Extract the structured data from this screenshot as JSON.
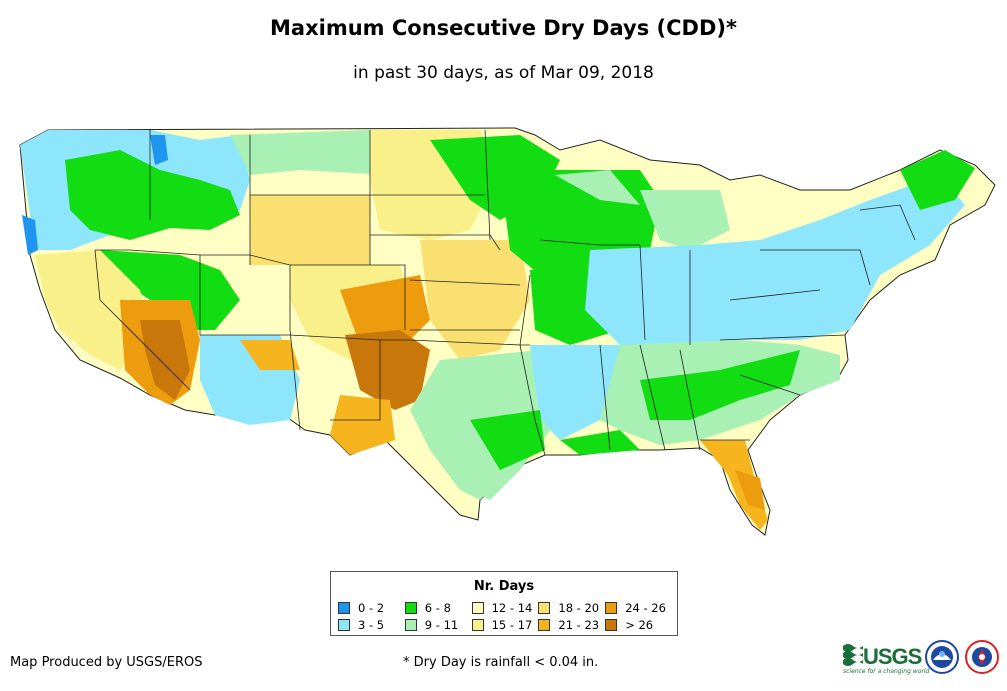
{
  "title": "Maximum Consecutive Dry Days (CDD)*",
  "subtitle": "in past 30 days, as of Mar 09, 2018",
  "legend": {
    "title": "Nr. Days",
    "items": [
      {
        "label": "0 - 2",
        "color": "#1e96f0"
      },
      {
        "label": "6 - 8",
        "color": "#12dc12"
      },
      {
        "label": "12 - 14",
        "color": "#ffffc4"
      },
      {
        "label": "18 - 20",
        "color": "#fae070"
      },
      {
        "label": "24 - 26",
        "color": "#ec9c0c"
      },
      {
        "label": "3 - 5",
        "color": "#8ee6fc"
      },
      {
        "label": "9 - 11",
        "color": "#a8f0b4"
      },
      {
        "label": "15 - 17",
        "color": "#faf08a"
      },
      {
        "label": "21 - 23",
        "color": "#f6b51e"
      },
      {
        "label": "> 26",
        "color": "#c8780a"
      }
    ]
  },
  "credit": "Map Produced by USGS/EROS",
  "footnote": "* Dry Day is rainfall < 0.04 in.",
  "logos": {
    "usgs_word": "USGS",
    "usgs_tagline": "science for a changing world"
  }
}
